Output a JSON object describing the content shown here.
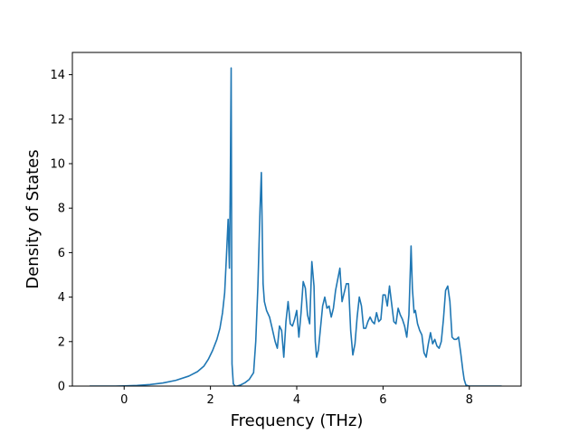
{
  "chart_data": {
    "type": "line",
    "title": "",
    "xlabel": "Frequency (THz)",
    "ylabel": "Density of States",
    "xlim": [
      -1.2,
      9.2
    ],
    "ylim": [
      0,
      15
    ],
    "xticks": [
      0,
      2,
      4,
      6,
      8
    ],
    "yticks": [
      0,
      2,
      4,
      6,
      8,
      10,
      12,
      14
    ],
    "grid": false,
    "colors": {
      "line": "#1f77b4",
      "axes": "#000000",
      "background": "#ffffff"
    },
    "series": [
      {
        "x": [
          -0.8,
          -0.5,
          -0.2,
          0.0,
          0.3,
          0.6,
          0.9,
          1.2,
          1.5,
          1.7,
          1.85,
          1.95,
          2.05,
          2.15,
          2.22,
          2.28,
          2.33,
          2.37,
          2.41,
          2.44,
          2.46,
          2.48,
          2.5,
          2.53,
          2.57,
          2.62,
          2.7,
          2.8,
          2.9,
          3.0,
          3.05,
          3.1,
          3.15,
          3.18,
          3.2,
          3.22,
          3.25,
          3.3,
          3.37,
          3.43,
          3.5,
          3.55,
          3.6,
          3.65,
          3.7,
          3.75,
          3.8,
          3.85,
          3.9,
          3.95,
          4.0,
          4.05,
          4.1,
          4.15,
          4.2,
          4.25,
          4.3,
          4.35,
          4.4,
          4.43,
          4.46,
          4.5,
          4.55,
          4.6,
          4.65,
          4.7,
          4.75,
          4.8,
          4.85,
          4.9,
          4.95,
          5.0,
          5.05,
          5.1,
          5.15,
          5.2,
          5.25,
          5.3,
          5.35,
          5.4,
          5.45,
          5.5,
          5.55,
          5.6,
          5.65,
          5.7,
          5.75,
          5.8,
          5.85,
          5.9,
          5.95,
          6.0,
          6.05,
          6.1,
          6.15,
          6.2,
          6.25,
          6.3,
          6.35,
          6.4,
          6.45,
          6.5,
          6.55,
          6.6,
          6.65,
          6.68,
          6.72,
          6.75,
          6.8,
          6.85,
          6.9,
          6.95,
          7.0,
          7.05,
          7.1,
          7.15,
          7.2,
          7.25,
          7.3,
          7.35,
          7.4,
          7.45,
          7.5,
          7.55,
          7.6,
          7.65,
          7.7,
          7.75,
          7.8,
          7.85,
          7.88,
          7.92,
          7.96,
          8.0,
          8.1,
          8.3,
          8.5,
          8.75
        ],
        "y": [
          0,
          0,
          0,
          0.01,
          0.03,
          0.07,
          0.14,
          0.26,
          0.45,
          0.65,
          0.9,
          1.2,
          1.6,
          2.1,
          2.6,
          3.3,
          4.2,
          5.8,
          7.5,
          5.3,
          9.0,
          14.3,
          1.0,
          0.1,
          0,
          0,
          0.05,
          0.15,
          0.3,
          0.6,
          2.0,
          4.5,
          8.0,
          9.6,
          7.0,
          4.6,
          3.8,
          3.4,
          3.1,
          2.6,
          2.0,
          1.7,
          2.7,
          2.5,
          1.3,
          2.9,
          3.8,
          2.8,
          2.7,
          3.0,
          3.4,
          2.2,
          3.3,
          4.7,
          4.4,
          3.2,
          2.8,
          5.6,
          4.5,
          2.0,
          1.3,
          1.6,
          2.6,
          3.6,
          4.0,
          3.5,
          3.6,
          3.1,
          3.5,
          4.3,
          4.8,
          5.3,
          3.8,
          4.2,
          4.6,
          4.6,
          2.5,
          1.4,
          1.9,
          3.1,
          4.0,
          3.6,
          2.6,
          2.6,
          2.9,
          3.1,
          2.9,
          2.8,
          3.3,
          2.9,
          3.0,
          4.1,
          4.1,
          3.6,
          4.5,
          3.7,
          2.9,
          2.8,
          3.5,
          3.2,
          3.0,
          2.7,
          2.2,
          3.2,
          6.3,
          4.4,
          3.3,
          3.4,
          2.8,
          2.5,
          2.3,
          1.5,
          1.3,
          1.9,
          2.4,
          1.9,
          2.1,
          1.8,
          1.7,
          2.0,
          3.0,
          4.3,
          4.5,
          3.8,
          2.2,
          2.1,
          2.1,
          2.2,
          1.5,
          0.7,
          0.3,
          0.05,
          0.02,
          0.0,
          0.0,
          0.0,
          0.0,
          0.0
        ]
      }
    ]
  }
}
